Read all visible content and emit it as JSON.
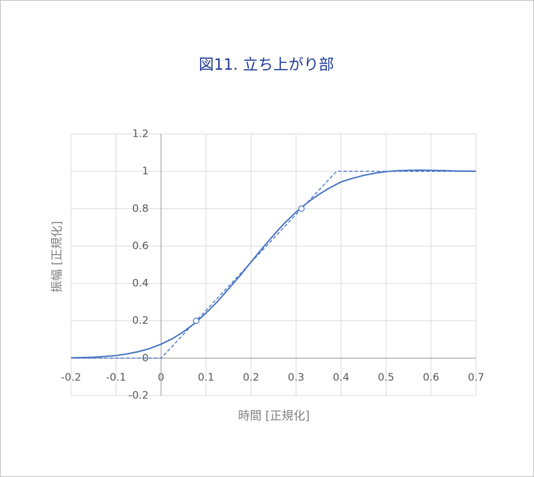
{
  "chart_data": {
    "type": "line",
    "title": "図11. 立ち上がり部",
    "x_label": "時間 [正規化]",
    "y_label": "振幅 [正規化]",
    "xlim": [
      -0.2,
      0.7
    ],
    "xticks": [
      -0.2,
      -0.1,
      0,
      0.1,
      0.2,
      0.3,
      0.4,
      0.5,
      0.6,
      0.7
    ],
    "ylim": [
      -0.2,
      1.2
    ],
    "yticks": [
      -0.2,
      0,
      0.2,
      0.4,
      0.6,
      0.8,
      1,
      1.2
    ],
    "grid": true,
    "series": [
      {
        "color": "#4472c4",
        "style": "solid",
        "x": [
          -0.2,
          -0.175,
          -0.15,
          -0.125,
          -0.1,
          -0.075,
          -0.05,
          -0.025,
          0,
          0.025,
          0.05,
          0.075,
          0.1,
          0.125,
          0.15,
          0.175,
          0.2,
          0.225,
          0.25,
          0.275,
          0.3,
          0.325,
          0.35,
          0.375,
          0.4,
          0.425,
          0.45,
          0.475,
          0.5,
          0.525,
          0.55,
          0.575,
          0.6,
          0.625,
          0.65,
          0.675,
          0.7
        ],
        "values": [
          0.002,
          0.003,
          0.005,
          0.009,
          0.014,
          0.023,
          0.035,
          0.052,
          0.075,
          0.104,
          0.142,
          0.187,
          0.242,
          0.302,
          0.371,
          0.44,
          0.515,
          0.588,
          0.658,
          0.724,
          0.782,
          0.832,
          0.875,
          0.912,
          0.943,
          0.962,
          0.978,
          0.99,
          0.998,
          1.003,
          1.005,
          1.006,
          1.005,
          1.004,
          1.002,
          1.001,
          1.0
        ]
      },
      {
        "color": "#4472c4",
        "style": "dashed",
        "x": [
          -0.2,
          0,
          0.39,
          0.7
        ],
        "values": [
          0,
          0,
          1,
          1
        ]
      },
      {
        "color": "#4472c4",
        "style": "markers",
        "marker": "open-circle",
        "x": [
          0.078,
          0.312
        ],
        "values": [
          0.2,
          0.8
        ]
      }
    ]
  }
}
